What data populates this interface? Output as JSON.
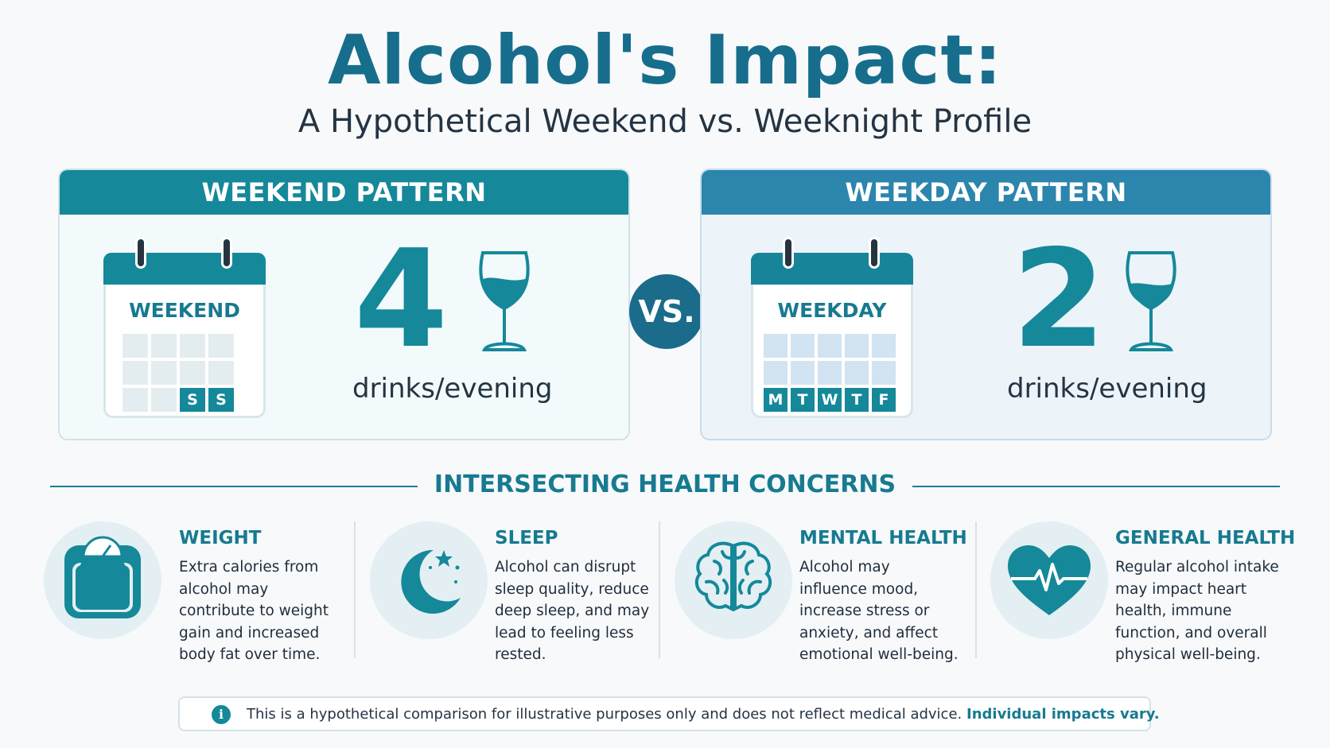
{
  "header": {
    "title": "Alcohol's Impact:",
    "subtitle": "A Hypothetical Weekend vs. Weeknight Profile"
  },
  "weekend": {
    "heading": "WEEKEND PATTERN",
    "calendar_label": "WEEKEND",
    "days": [
      "S",
      "S"
    ],
    "drinks": "4",
    "unit": "drinks/evening"
  },
  "weekday": {
    "heading": "WEEKDAY PATTERN",
    "calendar_label": "WEEKDAY",
    "days": [
      "M",
      "T",
      "W",
      "T",
      "F"
    ],
    "drinks": "2",
    "unit": "drinks/evening"
  },
  "vs_label": "VS.",
  "section": {
    "title": "INTERSECTING HEALTH CONCERNS"
  },
  "concerns": [
    {
      "title": "WEIGHT",
      "text": "Extra calories from alcohol may contribute to weight gain and increased body fat over time.",
      "icon": "scale-icon"
    },
    {
      "title": "SLEEP",
      "text": "Alcohol can disrupt sleep quality, reduce deep sleep, and may lead to feeling less rested.",
      "icon": "moon-icon"
    },
    {
      "title": "MENTAL HEALTH",
      "text": "Alcohol may influence mood, increase stress or anxiety, and affect emotional well-being.",
      "icon": "brain-icon"
    },
    {
      "title": "GENERAL HEALTH",
      "text": "Regular alcohol intake may impact heart health, immune function, and overall physical well-being.",
      "icon": "heart-icon"
    }
  ],
  "footer": {
    "text": "This is a hypothetical comparison for illustrative purposes only and does not reflect medical advice.",
    "emphasis": "Individual impacts vary."
  },
  "colors": {
    "teal": "#15889a",
    "blue": "#2b85ad",
    "navy": "#1b6b8a",
    "title": "#176d8c"
  }
}
